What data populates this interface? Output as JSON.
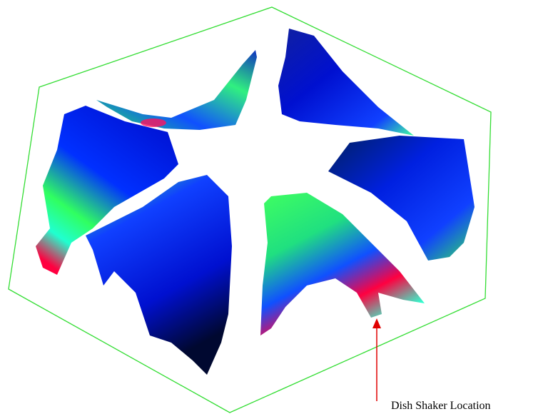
{
  "annotation": {
    "label": "Dish Shaker Location"
  }
}
